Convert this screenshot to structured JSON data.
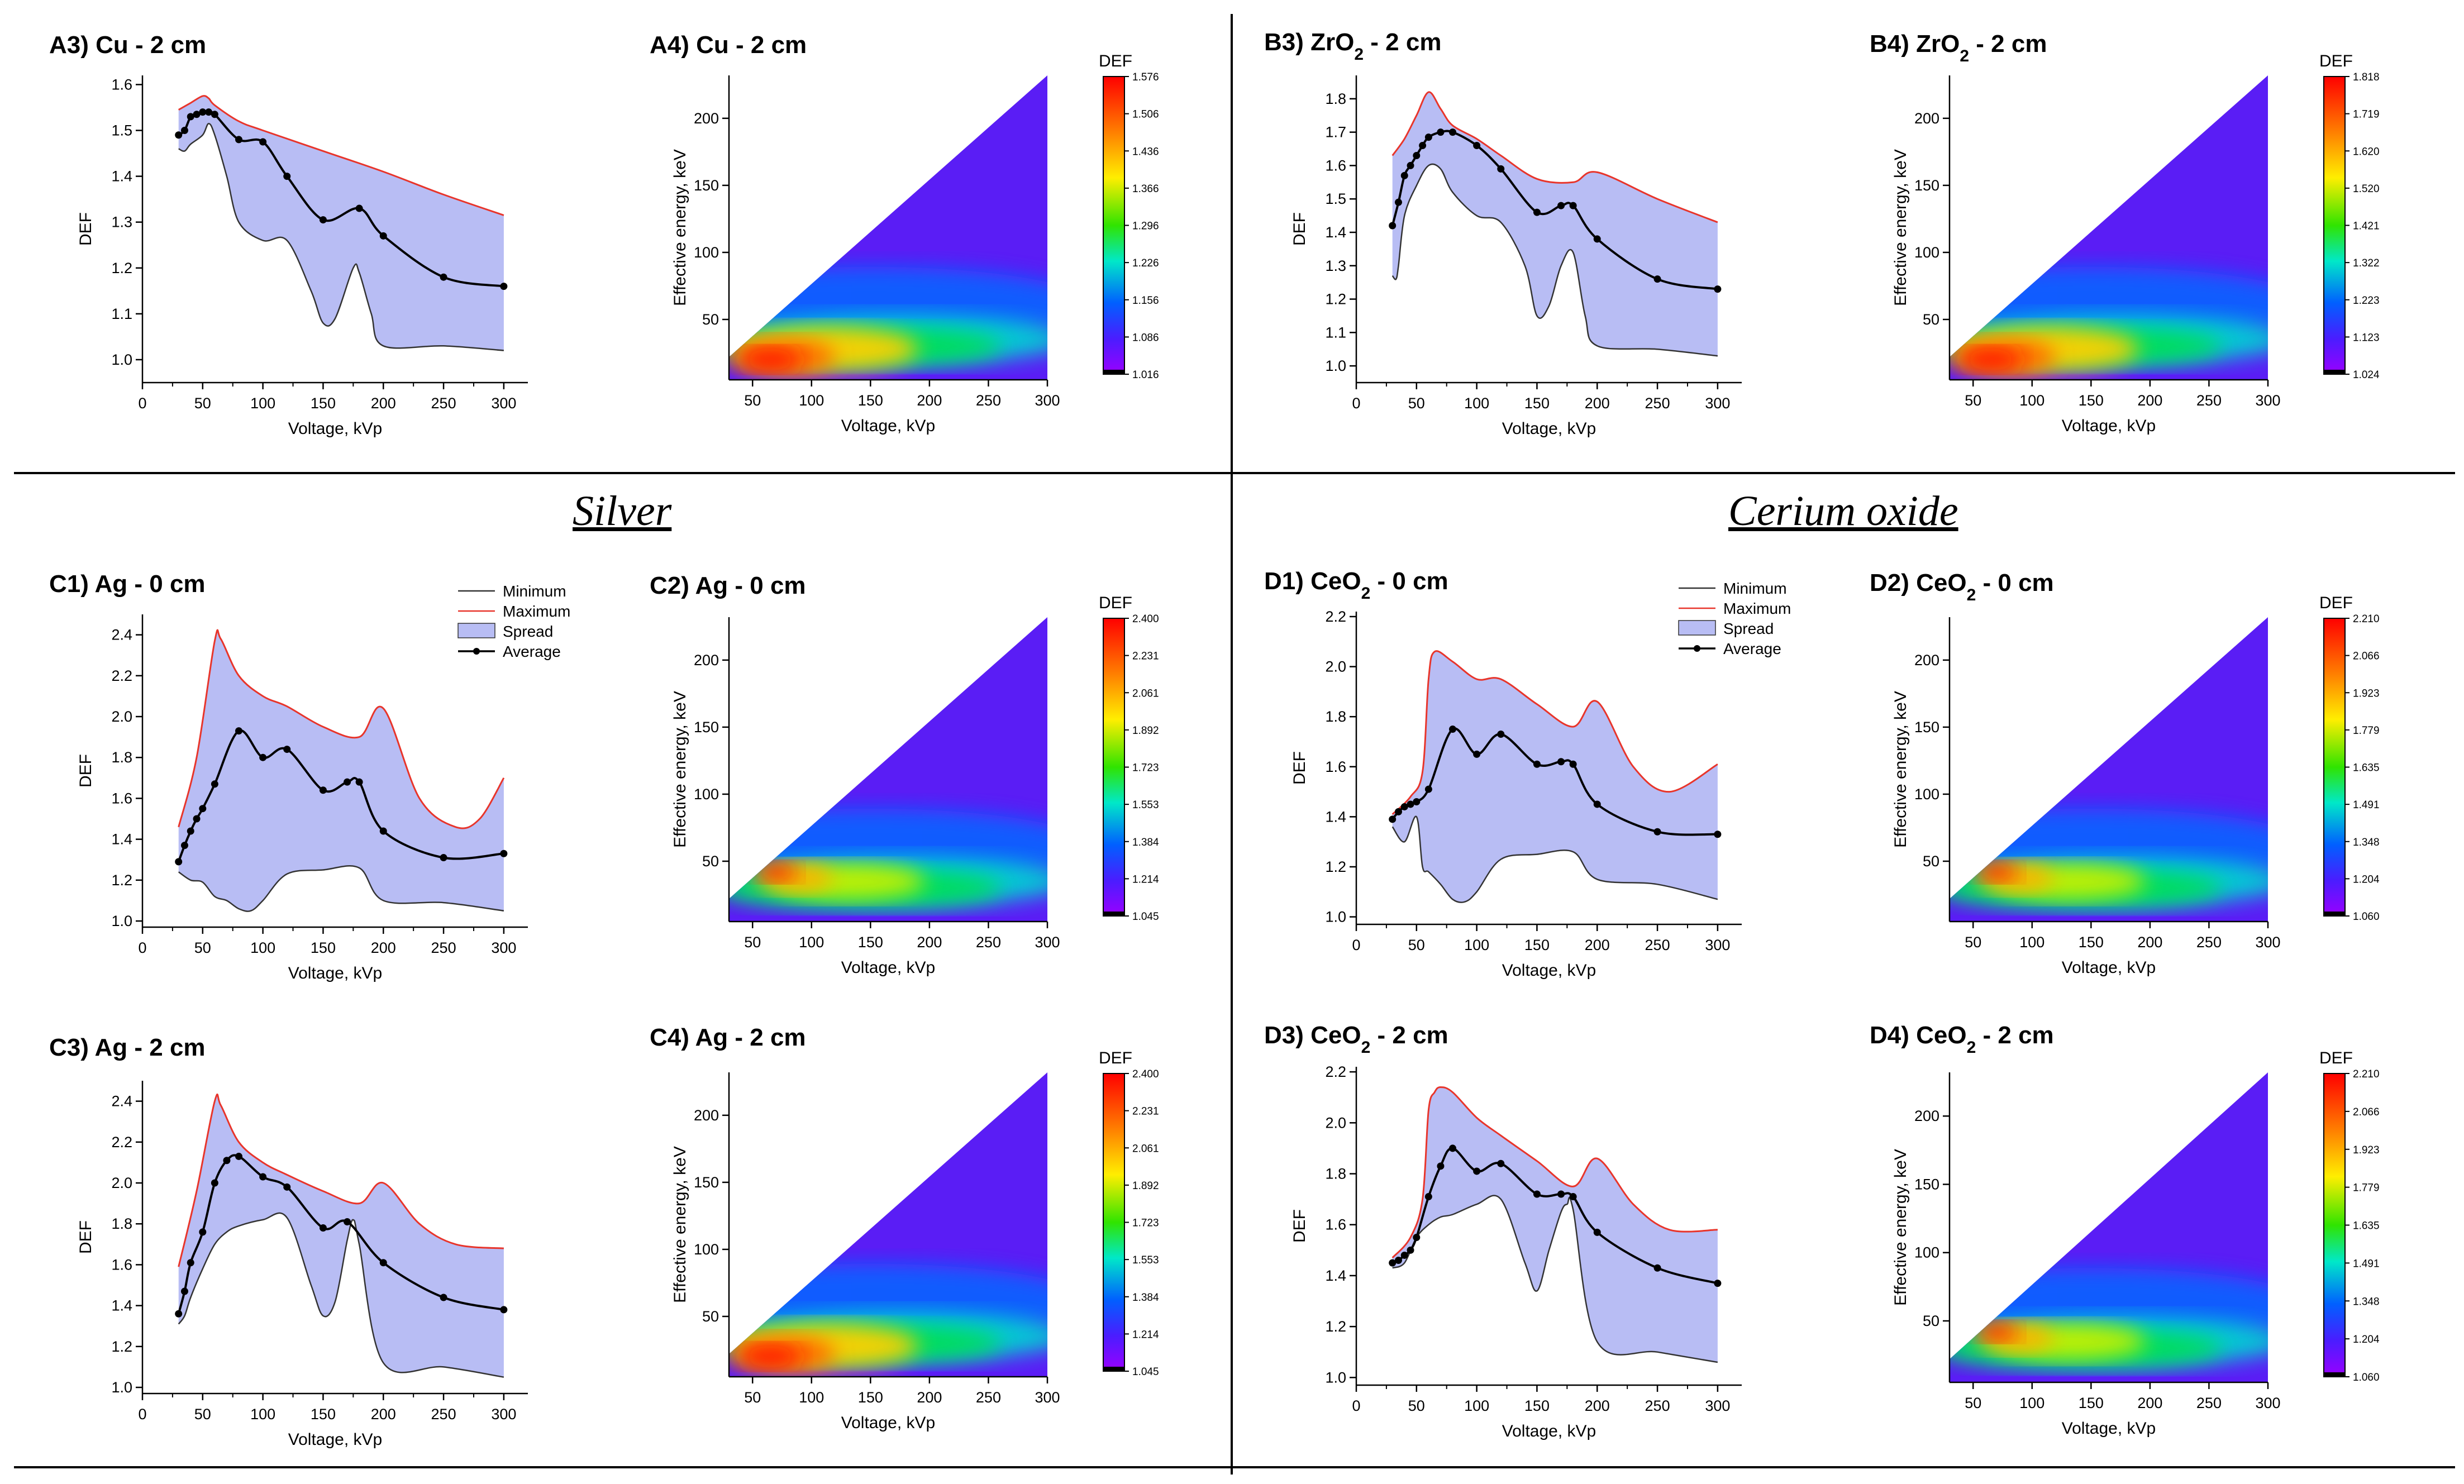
{
  "sections": {
    "silver": "Silver",
    "cerium": "Cerium oxide"
  },
  "legend": {
    "min": "Minimum",
    "max": "Maximum",
    "spread": "Spread",
    "avg": "Average"
  },
  "colors": {
    "max": "#e8352b",
    "min": "#333333",
    "spread": "#b8bdf4",
    "avg": "#000000"
  },
  "chart_data": [
    {
      "type": "line",
      "title": "A3) Cu - 2 cm",
      "xlabel": "Voltage, kVp",
      "ylabel": "DEF",
      "xlim": [
        0,
        320
      ],
      "ylim": [
        0.95,
        1.62
      ],
      "xticks": [
        0,
        50,
        100,
        150,
        200,
        250,
        300
      ],
      "yticks": [
        1.0,
        1.1,
        1.2,
        1.3,
        1.4,
        1.5,
        1.6
      ],
      "series": [
        {
          "name": "Average",
          "x": [
            30,
            35,
            40,
            45,
            50,
            55,
            60,
            80,
            100,
            120,
            150,
            180,
            200,
            250,
            300
          ],
          "values": [
            1.49,
            1.5,
            1.53,
            1.535,
            1.54,
            1.54,
            1.535,
            1.48,
            1.475,
            1.4,
            1.305,
            1.33,
            1.27,
            1.18,
            1.16
          ]
        },
        {
          "name": "Maximum",
          "x": [
            30,
            40,
            50,
            55,
            60,
            80,
            100,
            150,
            200,
            250,
            300
          ],
          "values": [
            1.545,
            1.56,
            1.575,
            1.57,
            1.555,
            1.52,
            1.5,
            1.455,
            1.41,
            1.36,
            1.315
          ]
        },
        {
          "name": "Minimum",
          "x": [
            30,
            35,
            40,
            50,
            55,
            60,
            70,
            80,
            100,
            120,
            140,
            150,
            160,
            175,
            180,
            190,
            200,
            250,
            300
          ],
          "values": [
            1.46,
            1.455,
            1.47,
            1.49,
            1.515,
            1.49,
            1.4,
            1.3,
            1.26,
            1.26,
            1.15,
            1.08,
            1.09,
            1.2,
            1.19,
            1.1,
            1.03,
            1.03,
            1.02
          ]
        }
      ]
    },
    {
      "type": "heatmap",
      "title": "A4) Cu - 2 cm",
      "xlabel": "Voltage, kVp",
      "ylabel": "Effective energy, keV",
      "colorbar_label": "DEF",
      "colorbar_ticks": [
        "1.576",
        "1.506",
        "1.436",
        "1.366",
        "1.296",
        "1.226",
        "1.156",
        "1.086",
        "1.016"
      ],
      "xlim": [
        30,
        300
      ],
      "ylim": [
        5,
        232
      ],
      "xticks": [
        50,
        100,
        150,
        200,
        250,
        300
      ],
      "yticks": [
        50,
        100,
        150,
        200
      ]
    },
    {
      "type": "line",
      "title": "B3) ZrO2 - 2 cm",
      "xlabel": "Voltage, kVp",
      "ylabel": "DEF",
      "xlim": [
        0,
        320
      ],
      "ylim": [
        0.95,
        1.87
      ],
      "xticks": [
        0,
        50,
        100,
        150,
        200,
        250,
        300
      ],
      "yticks": [
        1.0,
        1.1,
        1.2,
        1.3,
        1.4,
        1.5,
        1.6,
        1.7,
        1.8
      ],
      "series": [
        {
          "name": "Average",
          "x": [
            30,
            35,
            40,
            45,
            50,
            55,
            60,
            70,
            80,
            100,
            120,
            150,
            170,
            180,
            200,
            250,
            300
          ],
          "values": [
            1.42,
            1.49,
            1.57,
            1.6,
            1.63,
            1.66,
            1.685,
            1.7,
            1.7,
            1.66,
            1.59,
            1.46,
            1.48,
            1.48,
            1.38,
            1.26,
            1.23
          ]
        },
        {
          "name": "Maximum",
          "x": [
            30,
            40,
            50,
            60,
            70,
            80,
            100,
            120,
            150,
            180,
            200,
            250,
            300
          ],
          "values": [
            1.63,
            1.68,
            1.75,
            1.82,
            1.77,
            1.72,
            1.68,
            1.63,
            1.56,
            1.55,
            1.58,
            1.5,
            1.43
          ]
        },
        {
          "name": "Minimum",
          "x": [
            30,
            33,
            35,
            40,
            50,
            60,
            70,
            80,
            100,
            120,
            140,
            150,
            160,
            170,
            180,
            190,
            200,
            250,
            300
          ],
          "values": [
            1.27,
            1.26,
            1.3,
            1.45,
            1.54,
            1.6,
            1.59,
            1.52,
            1.45,
            1.43,
            1.3,
            1.15,
            1.18,
            1.3,
            1.34,
            1.15,
            1.06,
            1.05,
            1.03
          ]
        }
      ]
    },
    {
      "type": "heatmap",
      "title": "B4) ZrO2 - 2 cm",
      "xlabel": "Voltage, kVp",
      "ylabel": "Effective energy, keV",
      "colorbar_label": "DEF",
      "colorbar_ticks": [
        "1.818",
        "1.719",
        "1.620",
        "1.520",
        "1.421",
        "1.322",
        "1.223",
        "1.123",
        "1.024"
      ],
      "xlim": [
        30,
        300
      ],
      "ylim": [
        5,
        232
      ],
      "xticks": [
        50,
        100,
        150,
        200,
        250,
        300
      ],
      "yticks": [
        50,
        100,
        150,
        200
      ]
    },
    {
      "type": "line",
      "title": "C1) Ag - 0 cm",
      "xlabel": "Voltage, kVp",
      "ylabel": "DEF",
      "xlim": [
        0,
        320
      ],
      "ylim": [
        0.97,
        2.5
      ],
      "xticks": [
        0,
        50,
        100,
        150,
        200,
        250,
        300
      ],
      "yticks": [
        1.0,
        1.2,
        1.4,
        1.6,
        1.8,
        2.0,
        2.2,
        2.4
      ],
      "series": [
        {
          "name": "Average",
          "x": [
            30,
            35,
            40,
            45,
            50,
            60,
            80,
            100,
            120,
            150,
            170,
            180,
            200,
            250,
            300
          ],
          "values": [
            1.29,
            1.37,
            1.44,
            1.5,
            1.55,
            1.67,
            1.93,
            1.8,
            1.84,
            1.64,
            1.68,
            1.68,
            1.44,
            1.31,
            1.33
          ]
        },
        {
          "name": "Maximum",
          "x": [
            30,
            45,
            60,
            65,
            80,
            100,
            120,
            150,
            180,
            200,
            230,
            260,
            280,
            300
          ],
          "values": [
            1.46,
            1.8,
            2.37,
            2.38,
            2.2,
            2.1,
            2.05,
            1.95,
            1.9,
            2.04,
            1.6,
            1.46,
            1.5,
            1.7
          ]
        },
        {
          "name": "Minimum",
          "x": [
            30,
            40,
            50,
            60,
            70,
            80,
            90,
            100,
            120,
            150,
            180,
            200,
            250,
            300
          ],
          "values": [
            1.24,
            1.2,
            1.19,
            1.12,
            1.1,
            1.06,
            1.05,
            1.1,
            1.23,
            1.25,
            1.26,
            1.1,
            1.09,
            1.05
          ]
        }
      ]
    },
    {
      "type": "heatmap",
      "title": "C2) Ag - 0 cm",
      "xlabel": "Voltage, kVp",
      "ylabel": "Effective energy, keV",
      "colorbar_label": "DEF",
      "colorbar_ticks": [
        "2.400",
        "2.231",
        "2.061",
        "1.892",
        "1.723",
        "1.553",
        "1.384",
        "1.214",
        "1.045"
      ],
      "xlim": [
        30,
        300
      ],
      "ylim": [
        5,
        232
      ],
      "xticks": [
        50,
        100,
        150,
        200,
        250,
        300
      ],
      "yticks": [
        50,
        100,
        150,
        200
      ]
    },
    {
      "type": "line",
      "title": "C3) Ag - 2 cm",
      "xlabel": "Voltage, kVp",
      "ylabel": "DEF",
      "xlim": [
        0,
        320
      ],
      "ylim": [
        0.97,
        2.5
      ],
      "xticks": [
        0,
        50,
        100,
        150,
        200,
        250,
        300
      ],
      "yticks": [
        1.0,
        1.2,
        1.4,
        1.6,
        1.8,
        2.0,
        2.2,
        2.4
      ],
      "series": [
        {
          "name": "Average",
          "x": [
            30,
            35,
            40,
            50,
            60,
            70,
            80,
            100,
            120,
            150,
            170,
            200,
            250,
            300
          ],
          "values": [
            1.36,
            1.47,
            1.61,
            1.76,
            2.0,
            2.11,
            2.13,
            2.03,
            1.98,
            1.78,
            1.81,
            1.61,
            1.44,
            1.38
          ]
        },
        {
          "name": "Maximum",
          "x": [
            30,
            45,
            60,
            65,
            80,
            100,
            120,
            150,
            180,
            200,
            230,
            260,
            300
          ],
          "values": [
            1.59,
            1.96,
            2.4,
            2.38,
            2.2,
            2.1,
            2.04,
            1.96,
            1.9,
            2.0,
            1.8,
            1.7,
            1.68
          ]
        },
        {
          "name": "Minimum",
          "x": [
            30,
            35,
            40,
            50,
            60,
            70,
            80,
            100,
            120,
            140,
            150,
            160,
            170,
            175,
            180,
            200,
            250,
            300
          ],
          "values": [
            1.31,
            1.35,
            1.44,
            1.58,
            1.7,
            1.76,
            1.79,
            1.82,
            1.83,
            1.5,
            1.35,
            1.42,
            1.72,
            1.82,
            1.7,
            1.12,
            1.1,
            1.05
          ]
        }
      ]
    },
    {
      "type": "heatmap",
      "title": "C4) Ag - 2 cm",
      "xlabel": "Voltage, kVp",
      "ylabel": "Effective energy, keV",
      "colorbar_label": "DEF",
      "colorbar_ticks": [
        "2.400",
        "2.231",
        "2.061",
        "1.892",
        "1.723",
        "1.553",
        "1.384",
        "1.214",
        "1.045"
      ],
      "xlim": [
        30,
        300
      ],
      "ylim": [
        5,
        232
      ],
      "xticks": [
        50,
        100,
        150,
        200,
        250,
        300
      ],
      "yticks": [
        50,
        100,
        150,
        200
      ]
    },
    {
      "type": "line",
      "title": "D1) CeO2 - 0 cm",
      "xlabel": "Voltage, kVp",
      "ylabel": "DEF",
      "xlim": [
        0,
        320
      ],
      "ylim": [
        0.97,
        2.22
      ],
      "xticks": [
        0,
        50,
        100,
        150,
        200,
        250,
        300
      ],
      "yticks": [
        1.0,
        1.2,
        1.4,
        1.6,
        1.8,
        2.0,
        2.2
      ],
      "series": [
        {
          "name": "Average",
          "x": [
            30,
            35,
            40,
            45,
            50,
            60,
            80,
            100,
            120,
            150,
            170,
            180,
            200,
            250,
            300
          ],
          "values": [
            1.39,
            1.42,
            1.44,
            1.45,
            1.46,
            1.51,
            1.75,
            1.65,
            1.73,
            1.61,
            1.62,
            1.61,
            1.45,
            1.34,
            1.33
          ]
        },
        {
          "name": "Maximum",
          "x": [
            30,
            45,
            55,
            60,
            65,
            80,
            100,
            120,
            150,
            180,
            200,
            230,
            260,
            300
          ],
          "values": [
            1.41,
            1.48,
            1.58,
            1.95,
            2.06,
            2.02,
            1.95,
            1.95,
            1.85,
            1.76,
            1.86,
            1.6,
            1.5,
            1.61
          ]
        },
        {
          "name": "Minimum",
          "x": [
            30,
            40,
            50,
            55,
            60,
            70,
            80,
            90,
            100,
            120,
            150,
            180,
            200,
            250,
            300
          ],
          "values": [
            1.36,
            1.3,
            1.4,
            1.2,
            1.18,
            1.13,
            1.07,
            1.06,
            1.1,
            1.23,
            1.25,
            1.26,
            1.15,
            1.13,
            1.07
          ]
        }
      ]
    },
    {
      "type": "heatmap",
      "title": "D2) CeO2 - 0 cm",
      "xlabel": "Voltage, kVp",
      "ylabel": "Effective energy, keV",
      "colorbar_label": "DEF",
      "colorbar_ticks": [
        "2.210",
        "2.066",
        "1.923",
        "1.779",
        "1.635",
        "1.491",
        "1.348",
        "1.204",
        "1.060"
      ],
      "xlim": [
        30,
        300
      ],
      "ylim": [
        5,
        232
      ],
      "xticks": [
        50,
        100,
        150,
        200,
        250,
        300
      ],
      "yticks": [
        50,
        100,
        150,
        200
      ]
    },
    {
      "type": "line",
      "title": "D3) CeO2 - 2 cm",
      "xlabel": "Voltage, kVp",
      "ylabel": "DEF",
      "xlim": [
        0,
        320
      ],
      "ylim": [
        0.97,
        2.22
      ],
      "xticks": [
        0,
        50,
        100,
        150,
        200,
        250,
        300
      ],
      "yticks": [
        1.0,
        1.2,
        1.4,
        1.6,
        1.8,
        2.0,
        2.2
      ],
      "series": [
        {
          "name": "Average",
          "x": [
            30,
            35,
            40,
            45,
            50,
            60,
            70,
            80,
            100,
            120,
            150,
            170,
            180,
            200,
            250,
            300
          ],
          "values": [
            1.45,
            1.46,
            1.48,
            1.5,
            1.55,
            1.71,
            1.83,
            1.9,
            1.81,
            1.84,
            1.72,
            1.72,
            1.71,
            1.57,
            1.43,
            1.37
          ]
        },
        {
          "name": "Maximum",
          "x": [
            30,
            45,
            55,
            60,
            65,
            70,
            80,
            100,
            120,
            150,
            180,
            200,
            230,
            260,
            300
          ],
          "values": [
            1.47,
            1.55,
            1.7,
            2.05,
            2.12,
            2.14,
            2.12,
            2.02,
            1.95,
            1.85,
            1.75,
            1.86,
            1.68,
            1.58,
            1.58
          ]
        },
        {
          "name": "Minimum",
          "x": [
            30,
            40,
            50,
            60,
            70,
            80,
            100,
            120,
            140,
            150,
            160,
            170,
            175,
            180,
            200,
            250,
            300
          ],
          "values": [
            1.43,
            1.45,
            1.55,
            1.6,
            1.63,
            1.64,
            1.68,
            1.7,
            1.45,
            1.34,
            1.5,
            1.65,
            1.68,
            1.66,
            1.14,
            1.1,
            1.06
          ]
        }
      ]
    },
    {
      "type": "heatmap",
      "title": "D4) CeO2 - 2 cm",
      "xlabel": "Voltage, kVp",
      "ylabel": "Effective energy, keV",
      "colorbar_label": "DEF",
      "colorbar_ticks": [
        "2.210",
        "2.066",
        "1.923",
        "1.779",
        "1.635",
        "1.491",
        "1.348",
        "1.204",
        "1.060"
      ],
      "xlim": [
        30,
        300
      ],
      "ylim": [
        5,
        232
      ],
      "xticks": [
        50,
        100,
        150,
        200,
        250,
        300
      ],
      "yticks": [
        50,
        100,
        150,
        200
      ]
    }
  ]
}
